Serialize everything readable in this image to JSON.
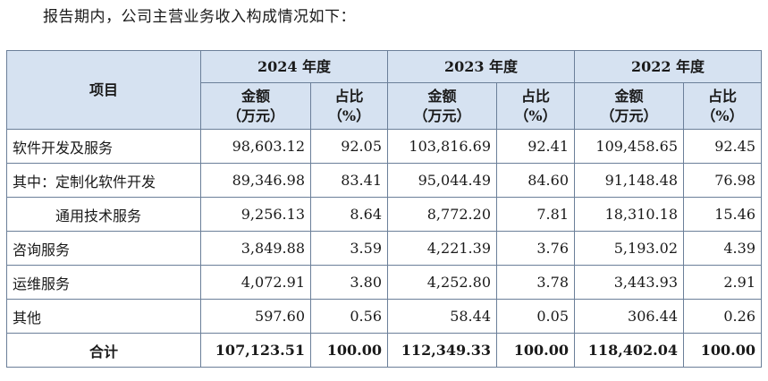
{
  "intro": "报告期内，公司主营业务收入构成情况如下：",
  "header": {
    "item": "项目",
    "years": [
      "2024 年度",
      "2023 年度",
      "2022 年度"
    ],
    "amount_line1": "金额",
    "amount_line2": "（万元）",
    "ratio_line1": "占比",
    "ratio_line2": "（%）"
  },
  "rows": [
    {
      "label": "软件开发及服务",
      "cells": [
        "98,603.12",
        "92.05",
        "103,816.69",
        "92.41",
        "109,458.65",
        "92.45"
      ]
    },
    {
      "label": "其中：定制化软件开发",
      "cells": [
        "89,346.98",
        "83.41",
        "95,044.49",
        "84.60",
        "91,148.48",
        "76.98"
      ]
    },
    {
      "label": "通用技术服务",
      "cells": [
        "9,256.13",
        "8.64",
        "8,772.20",
        "7.81",
        "18,310.18",
        "15.46"
      ]
    },
    {
      "label": "咨询服务",
      "cells": [
        "3,849.88",
        "3.59",
        "4,221.39",
        "3.76",
        "5,193.02",
        "4.39"
      ]
    },
    {
      "label": "运维服务",
      "cells": [
        "4,072.91",
        "3.80",
        "4,252.80",
        "3.78",
        "3,443.93",
        "2.91"
      ]
    },
    {
      "label": "其他",
      "cells": [
        "597.60",
        "0.56",
        "58.44",
        "0.05",
        "306.44",
        "0.26"
      ]
    }
  ],
  "total": {
    "label": "合计",
    "cells": [
      "107,123.51",
      "100.00",
      "112,349.33",
      "100.00",
      "118,402.04",
      "100.00"
    ]
  }
}
